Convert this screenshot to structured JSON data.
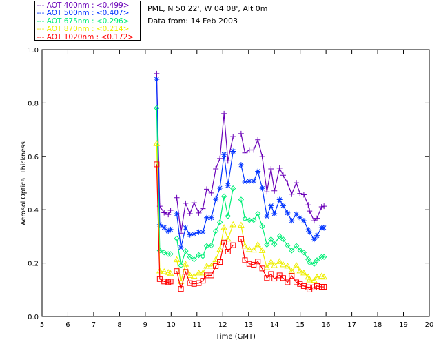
{
  "header": {
    "location": "PML, N 50 22', W 04 08', Alt 0m",
    "date": "Data from: 14 Feb 2003"
  },
  "legend": [
    {
      "label": "--- AOT  400nm : <0.499>",
      "color": "#6a00b8"
    },
    {
      "label": "--- AOT  500nm : <0.407>",
      "color": "#0033ff"
    },
    {
      "label": "--- AOT  675nm : <0.296>",
      "color": "#00ee77"
    },
    {
      "label": "--- AOT  870nm : <0.214>",
      "color": "#eeee00"
    },
    {
      "label": "--- AOT 1020nm : <0.172>",
      "color": "#ff0000"
    }
  ],
  "chart_data": {
    "type": "line",
    "xlabel": "Time (GMT)",
    "ylabel": "Aerosol Optical Thickness",
    "xlim": [
      5,
      20
    ],
    "ylim": [
      0,
      1
    ],
    "xticks": [
      "5",
      "6",
      "7",
      "8",
      "9",
      "10",
      "11",
      "12",
      "13",
      "14",
      "15",
      "16",
      "17",
      "18",
      "19",
      "20"
    ],
    "yticks": [
      "0.0",
      "0.2",
      "0.4",
      "0.6",
      "0.8",
      "1.0"
    ],
    "x": [
      9.44,
      9.56,
      9.73,
      9.89,
      9.98,
      null,
      10.22,
      10.38,
      10.56,
      10.73,
      10.89,
      11.07,
      11.23,
      11.38,
      11.56,
      11.73,
      11.89,
      12.05,
      12.2,
      12.4,
      null,
      12.71,
      12.86,
      13.03,
      13.2,
      13.36,
      13.53,
      13.71,
      13.87,
      14.0,
      14.2,
      14.34,
      14.51,
      14.67,
      14.85,
      14.99,
      15.14,
      15.31,
      15.36,
      15.54,
      15.65,
      15.83,
      15.92
    ],
    "series": [
      {
        "name": "AOT 400nm",
        "marker": "plus",
        "color": "#6a00b8",
        "values": [
          0.91,
          0.413,
          0.389,
          0.382,
          0.398,
          null,
          0.445,
          0.312,
          0.424,
          0.385,
          0.426,
          0.388,
          0.404,
          0.477,
          0.463,
          0.553,
          0.592,
          0.76,
          0.583,
          0.674,
          null,
          0.685,
          0.613,
          0.624,
          0.624,
          0.662,
          0.599,
          0.467,
          0.553,
          0.471,
          0.556,
          0.529,
          0.5,
          0.458,
          0.501,
          0.461,
          0.456,
          0.418,
          0.395,
          0.359,
          0.368,
          0.411,
          0.413
        ]
      },
      {
        "name": "AOT 500nm",
        "marker": "asterisk",
        "color": "#0033ff",
        "values": [
          0.889,
          0.344,
          0.333,
          0.32,
          0.326,
          null,
          0.385,
          0.258,
          0.332,
          0.306,
          0.309,
          0.316,
          0.316,
          0.37,
          0.37,
          0.439,
          0.481,
          0.607,
          0.491,
          0.619,
          null,
          0.568,
          0.504,
          0.507,
          0.507,
          0.544,
          0.48,
          0.375,
          0.415,
          0.385,
          0.438,
          0.415,
          0.388,
          0.359,
          0.383,
          0.37,
          0.359,
          0.325,
          0.316,
          0.289,
          0.303,
          0.333,
          0.332
        ]
      },
      {
        "name": "AOT 675nm",
        "marker": "diamond",
        "color": "#00ee77",
        "values": [
          0.781,
          0.247,
          0.24,
          0.234,
          0.234,
          null,
          0.292,
          0.191,
          0.245,
          0.223,
          0.214,
          0.23,
          0.226,
          0.264,
          0.266,
          0.32,
          0.353,
          0.45,
          0.376,
          0.48,
          null,
          0.438,
          0.366,
          0.361,
          0.361,
          0.385,
          0.338,
          0.269,
          0.289,
          0.271,
          0.301,
          0.289,
          0.266,
          0.247,
          0.264,
          0.249,
          0.24,
          0.214,
          0.202,
          0.197,
          0.211,
          0.223,
          0.223
        ]
      },
      {
        "name": "AOT 870nm",
        "marker": "triangle",
        "color": "#eeee00",
        "values": [
          0.648,
          0.171,
          0.168,
          0.165,
          0.161,
          null,
          0.213,
          0.131,
          0.196,
          0.154,
          0.151,
          0.163,
          0.163,
          0.189,
          0.189,
          0.213,
          0.251,
          0.333,
          0.29,
          0.344,
          null,
          0.342,
          0.264,
          0.251,
          0.249,
          0.269,
          0.247,
          0.183,
          0.204,
          0.191,
          0.206,
          0.194,
          0.189,
          0.17,
          0.191,
          0.171,
          0.163,
          0.148,
          0.137,
          0.135,
          0.148,
          0.151,
          0.148
        ]
      },
      {
        "name": "AOT 1020nm",
        "marker": "square",
        "color": "#ff0000",
        "values": [
          0.57,
          0.14,
          0.131,
          0.128,
          0.131,
          null,
          0.17,
          0.103,
          0.167,
          0.125,
          0.122,
          0.125,
          0.134,
          0.154,
          0.154,
          0.189,
          0.204,
          0.277,
          0.243,
          0.267,
          null,
          0.29,
          0.211,
          0.197,
          0.194,
          0.206,
          0.18,
          0.144,
          0.159,
          0.142,
          0.154,
          0.144,
          0.128,
          0.152,
          0.128,
          0.122,
          0.114,
          0.109,
          0.101,
          0.109,
          0.114,
          0.111,
          0.111
        ]
      }
    ]
  }
}
